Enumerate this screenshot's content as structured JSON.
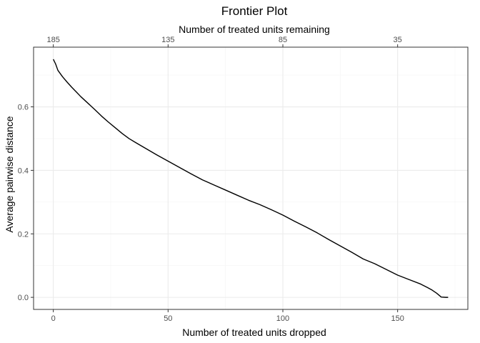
{
  "chart_data": {
    "type": "line",
    "title": "Frontier Plot",
    "xlabel": "Number of treated units dropped",
    "ylabel": "Average pairwise distance",
    "x2label": "Number of treated units remaining",
    "xlim": [
      -8.6,
      180.6
    ],
    "ylim": [
      -0.038,
      0.788
    ],
    "x_ticks": [
      0,
      50,
      100,
      150
    ],
    "x_tick_labels": [
      "0",
      "50",
      "100",
      "150"
    ],
    "x2_ticks": [
      0,
      50,
      100,
      150
    ],
    "x2_tick_labels": [
      "185",
      "135",
      "85",
      "35"
    ],
    "y_ticks": [
      0.0,
      0.2,
      0.4,
      0.6
    ],
    "y_tick_labels": [
      "0.0",
      "0.2",
      "0.4",
      "0.6"
    ],
    "grid": true,
    "legend": "none",
    "series": [
      {
        "color": "#000000",
        "x": [
          0,
          1,
          2,
          4,
          6,
          8,
          10,
          12,
          15,
          18,
          21,
          24,
          27,
          30,
          33,
          36,
          40,
          45,
          50,
          55,
          60,
          65,
          70,
          75,
          80,
          85,
          90,
          95,
          100,
          105,
          110,
          115,
          120,
          125,
          130,
          135,
          140,
          145,
          150,
          155,
          160,
          163,
          165,
          167,
          169,
          171,
          172
        ],
        "y": [
          0.75,
          0.735,
          0.715,
          0.695,
          0.678,
          0.662,
          0.647,
          0.632,
          0.612,
          0.592,
          0.571,
          0.552,
          0.534,
          0.516,
          0.5,
          0.487,
          0.47,
          0.449,
          0.429,
          0.409,
          0.389,
          0.37,
          0.354,
          0.338,
          0.322,
          0.306,
          0.292,
          0.276,
          0.259,
          0.24,
          0.222,
          0.203,
          0.182,
          0.162,
          0.142,
          0.121,
          0.106,
          0.088,
          0.07,
          0.056,
          0.042,
          0.031,
          0.023,
          0.013,
          0.001,
          0.0,
          0.0
        ]
      }
    ]
  },
  "colors": {
    "background": "#ffffff",
    "panel_border": "#333333",
    "major_grid": "#ebebeb",
    "minor_grid": "#f4f4f4",
    "tick_text": "#4d4d4d",
    "line": "#000000"
  }
}
